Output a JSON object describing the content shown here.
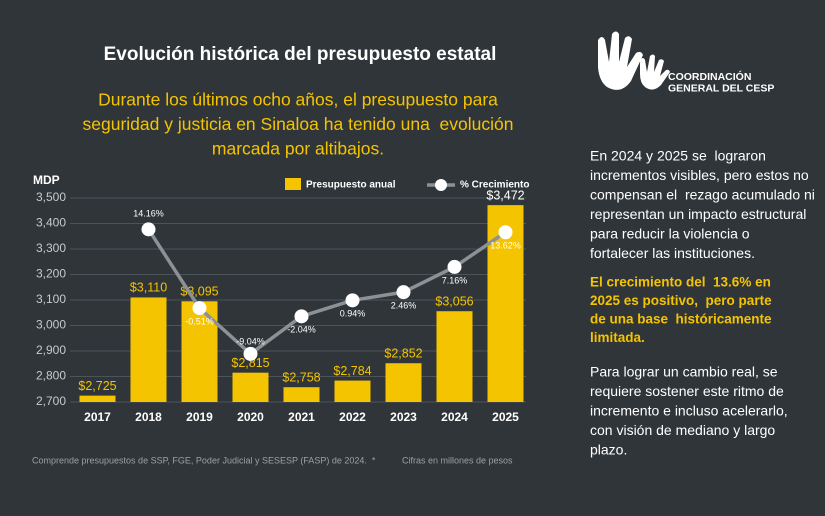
{
  "chart_data": {
    "type": "bar",
    "title": "Evolución histórica del presupuesto estatal",
    "subtitle": [
      "Durante los últimos ocho años, el presupuesto para",
      "seguridad y justicia en Sinaloa ha tenido una  evolución",
      "marcada por altibajos."
    ],
    "ylabel": "MDP",
    "categories": [
      "2017",
      "2018",
      "2019",
      "2020",
      "2021",
      "2022",
      "2023",
      "2024",
      "2025"
    ],
    "ylim": [
      2700,
      3500
    ],
    "yticks": [
      {
        "value": 2700,
        "label": "2,700"
      },
      {
        "value": 2800,
        "label": "2,800"
      },
      {
        "value": 2900,
        "label": "2,900"
      },
      {
        "value": 3000,
        "label": "3,000"
      },
      {
        "value": 3100,
        "label": "3,100"
      },
      {
        "value": 3200,
        "label": "3,200"
      },
      {
        "value": 3300,
        "label": "3,300"
      },
      {
        "value": 3400,
        "label": "3,400"
      },
      {
        "value": 3500,
        "label": "3,500"
      }
    ],
    "y2lim": [
      -18,
      20
    ],
    "grid": true,
    "series": [
      {
        "name": "Presupuesto anual",
        "type": "bar",
        "color": "#f5c400",
        "values": [
          2725,
          3110,
          3095,
          2815,
          2758,
          2784,
          2852,
          3056,
          3472
        ],
        "value_labels": [
          "$2,725",
          "$3,110",
          "$3,095",
          "$2,815",
          "$2,758",
          "$2,784",
          "$2,852",
          "$3,056",
          "$3,472"
        ]
      },
      {
        "name": "% Crecimiento",
        "type": "line",
        "axis": "y2",
        "color": "#8c9195",
        "values": [
          null,
          14.16,
          -0.51,
          -9.04,
          -2.04,
          0.94,
          2.46,
          7.16,
          13.62
        ],
        "value_labels": [
          null,
          "14.16%",
          "-0.51%",
          "-9.04%",
          "-2.04%",
          "0.94%",
          "2.46%",
          "7.16%",
          "13.62%"
        ]
      }
    ],
    "footnotes": [
      "Comprende presupuestos de SSP, FGE, Poder Judicial y SESESP (FASP) de 2024.  *",
      "Cifras en millones de pesos"
    ]
  },
  "sidebar": {
    "logo_text": [
      "COORDINACIÓN",
      "GENERAL DEL CESP"
    ],
    "paragraph_1": [
      "En 2024 y 2025 se  lograron",
      "incrementos visibles, pero estos no",
      "compensan el  rezago acumulado ni",
      "representan un impacto estructural",
      "para reducir la violencia o",
      "fortalecer las instituciones."
    ],
    "highlight": [
      "El crecimiento del  13.6% en",
      "2025 es positivo,  pero parte",
      "de una base  históricamente",
      "limitada."
    ],
    "paragraph_2": [
      "Para lograr un cambio real, se",
      "requiere sostener este ritmo de",
      "incremento e incluso acelerarlo,",
      "con visión de mediano y largo",
      "plazo."
    ]
  }
}
